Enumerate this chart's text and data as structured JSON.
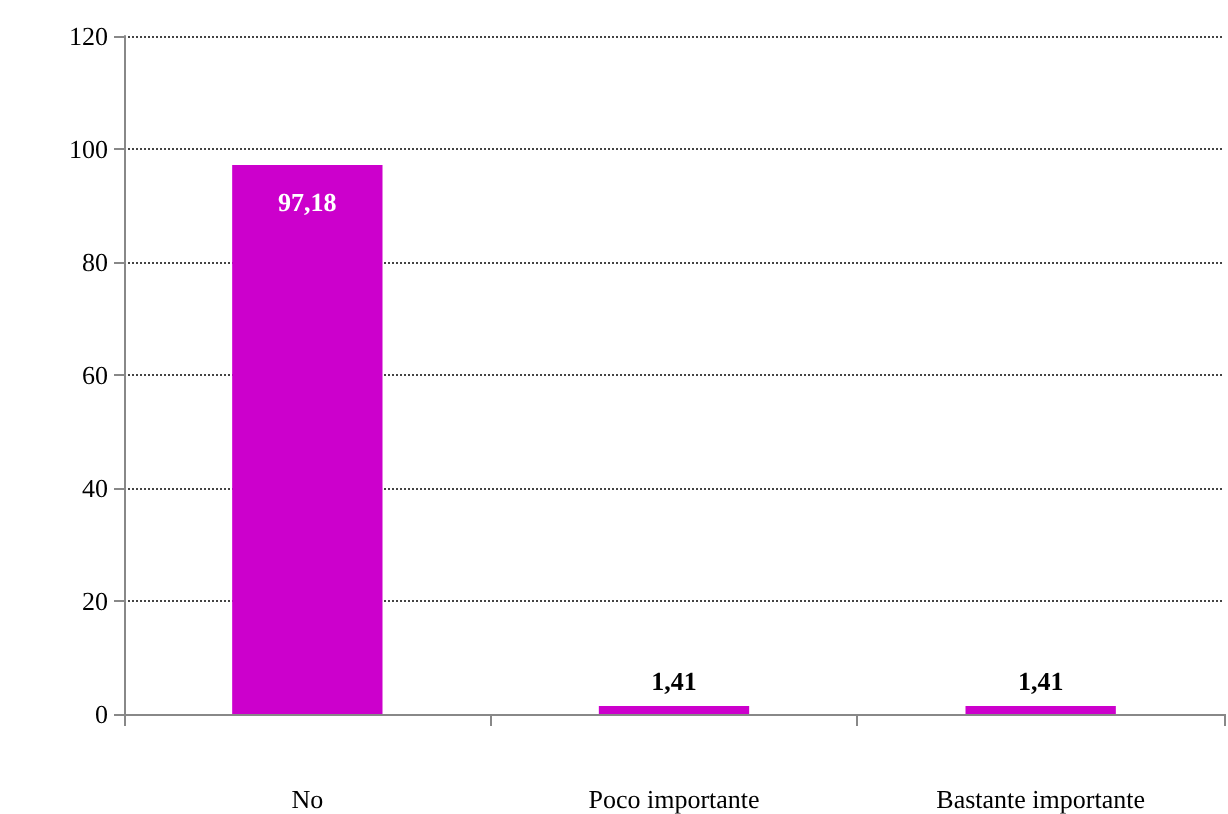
{
  "chart_data": {
    "type": "bar",
    "categories": [
      "No",
      "Poco importante",
      "Bastante importante"
    ],
    "values": [
      97.18,
      1.41,
      1.41
    ],
    "color": "#cc00cc",
    "value_labels": [
      "97,18",
      "1,41",
      "1,41"
    ],
    "ylim": [
      0,
      120
    ],
    "yticks": [
      0,
      20,
      40,
      60,
      80,
      100,
      120
    ],
    "grid": "y"
  }
}
